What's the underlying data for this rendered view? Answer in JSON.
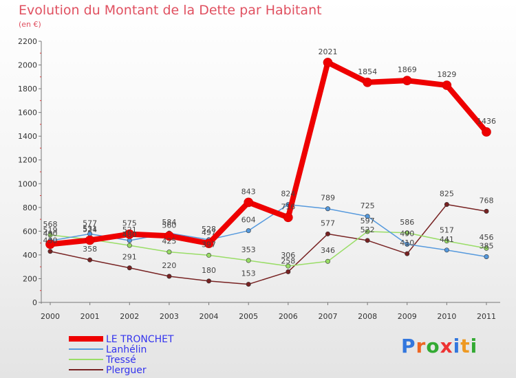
{
  "header": {
    "title": "Evolution du Montant de la Dette par Habitant",
    "subtitle": "(en €)"
  },
  "logo": {
    "text": "Proxiti"
  },
  "chart_data": {
    "type": "line",
    "title": "Evolution du Montant de la Dette par Habitant",
    "subtitle": "(en €)",
    "xlabel": "",
    "ylabel": "",
    "ylim": [
      0,
      2200
    ],
    "y_ticks": [
      0,
      200,
      400,
      600,
      800,
      1000,
      1200,
      1400,
      1600,
      1800,
      2000,
      2200
    ],
    "x": [
      "2000",
      "2001",
      "2002",
      "2003",
      "2004",
      "2005",
      "2006",
      "2007",
      "2008",
      "2009",
      "2010",
      "2011"
    ],
    "grid": false,
    "legend_position": "bottom-left",
    "series": [
      {
        "name": "LE TRONCHET",
        "color": "#ee0000",
        "values": [
          490,
          524,
          575,
          560,
          497,
          843,
          716,
          2021,
          1854,
          1869,
          1829,
          1436
        ]
      },
      {
        "name": "Lanhélin",
        "color": "#5599dd",
        "values": [
          519,
          577,
          521,
          584,
          528,
          604,
          824,
          789,
          725,
          490,
          441,
          385
        ]
      },
      {
        "name": "Tressé",
        "color": "#99dd66",
        "values": [
          568,
          531,
          480,
          425,
          397,
          353,
          306,
          346,
          597,
          586,
          517,
          456
        ]
      },
      {
        "name": "Plerguer",
        "color": "#772222",
        "values": [
          430,
          358,
          291,
          220,
          180,
          153,
          258,
          577,
          522,
          410,
          825,
          768
        ]
      }
    ]
  }
}
